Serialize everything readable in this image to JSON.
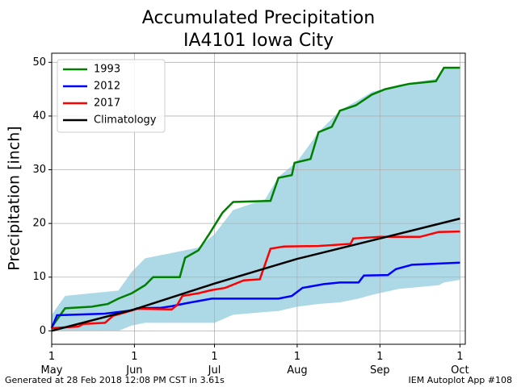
{
  "chart_data": {
    "type": "line",
    "title": "Accumulated Precipitation",
    "subtitle": "IA4101 Iowa City",
    "ylabel": "Precipitation [inch]",
    "xlim": [
      0,
      155
    ],
    "ylim": [
      -2.5,
      51.7
    ],
    "yticks": [
      0,
      10,
      20,
      30,
      40,
      50
    ],
    "xticks": [
      {
        "value": 0,
        "label": "1\nMay"
      },
      {
        "value": 31,
        "label": "1\nJun"
      },
      {
        "value": 61,
        "label": "1\nJul"
      },
      {
        "value": 92,
        "label": "1\nAug"
      },
      {
        "value": 123,
        "label": "1\nSep"
      },
      {
        "value": 153,
        "label": "1\nOct"
      }
    ],
    "grid": true,
    "legend": "upper left",
    "band": {
      "color": "#add8e6",
      "x": [
        0,
        5,
        25,
        30,
        35,
        45,
        55,
        61,
        68,
        80,
        85,
        92,
        100,
        108,
        115,
        120,
        130,
        145,
        147,
        153
      ],
      "upper": [
        3,
        6.5,
        7.5,
        11,
        13.5,
        14.5,
        15.5,
        18,
        22.5,
        24.5,
        28.7,
        31.5,
        37,
        41,
        43,
        44.5,
        45.8,
        47,
        49,
        49
      ],
      "lower": [
        0,
        0,
        0,
        1,
        1.5,
        1.5,
        1.5,
        1.5,
        3,
        3.5,
        3.7,
        4.5,
        5,
        5.3,
        6,
        6.7,
        7.8,
        8.5,
        9,
        9.5
      ]
    },
    "series": [
      {
        "name": "1993",
        "color": "#008000",
        "x": [
          0,
          5,
          15,
          21,
          25,
          30,
          35,
          38,
          48,
          50,
          55,
          59,
          64,
          68,
          82,
          85,
          90,
          91,
          97,
          100,
          105,
          108,
          114,
          120,
          125,
          134,
          144,
          147,
          153
        ],
        "values": [
          0.7,
          4.2,
          4.5,
          5,
          6,
          7,
          8.5,
          10,
          10,
          13.6,
          15,
          18,
          22,
          24,
          24.2,
          28.5,
          29,
          31.3,
          32,
          37,
          38,
          41,
          42,
          44,
          45,
          46,
          46.5,
          49,
          49
        ]
      },
      {
        "name": "2012",
        "color": "#0000ff",
        "x": [
          0,
          2,
          20,
          30,
          32,
          41,
          45,
          51,
          60,
          85,
          90,
          94,
          102,
          108,
          115,
          117,
          126,
          129,
          135,
          153
        ],
        "values": [
          0.5,
          2.9,
          3.2,
          3.8,
          4.2,
          4.3,
          4.6,
          5.2,
          6,
          6,
          6.5,
          8,
          8.7,
          9,
          9,
          10.3,
          10.4,
          11.5,
          12.3,
          12.7
        ]
      },
      {
        "name": "2017",
        "color": "#ff0000",
        "x": [
          0,
          10,
          12,
          20,
          23,
          28,
          32,
          45,
          47,
          49,
          55,
          60,
          65,
          72,
          78,
          82,
          87,
          100,
          112,
          113,
          123,
          138,
          145,
          153
        ],
        "values": [
          0.5,
          0.8,
          1.3,
          1.5,
          2.8,
          3.5,
          4.1,
          4,
          4.8,
          6.5,
          7,
          7.6,
          8,
          9.4,
          9.6,
          15.3,
          15.7,
          15.8,
          16.2,
          17.2,
          17.5,
          17.5,
          18.4,
          18.5
        ]
      },
      {
        "name": "Climatology",
        "color": "#000000",
        "x": [
          0,
          31,
          61,
          92,
          123,
          153
        ],
        "values": [
          0,
          4,
          8.8,
          13.4,
          17.2,
          20.9
        ]
      }
    ],
    "footer_left": "Generated at 28 Feb 2018 12:08 PM CST in 3.61s",
    "footer_right": "IEM Autoplot App #108"
  }
}
